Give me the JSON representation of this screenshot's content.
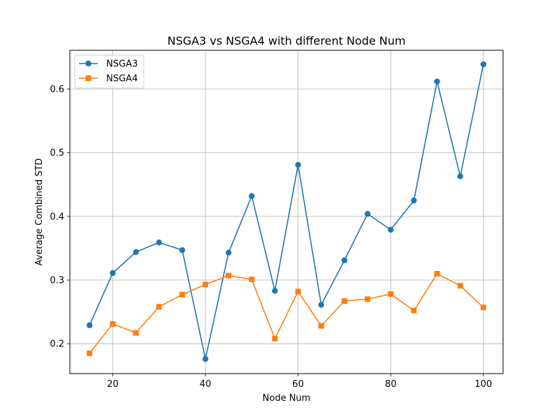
{
  "chart_data": {
    "type": "line",
    "title": "NSGA3 vs NSGA4 with different Node Num",
    "xlabel": "Node Num",
    "ylabel": "Average Combined STD",
    "xlim": [
      10.75,
      104.25
    ],
    "ylim": [
      0.153,
      0.661
    ],
    "xticks": [
      20,
      40,
      60,
      80,
      100
    ],
    "yticks": [
      0.2,
      0.3,
      0.4,
      0.5,
      0.6
    ],
    "grid": true,
    "legend_position": "top-left",
    "x": [
      15,
      20,
      25,
      30,
      35,
      40,
      45,
      50,
      55,
      60,
      65,
      70,
      75,
      80,
      85,
      90,
      95,
      100
    ],
    "series": [
      {
        "name": "NSGA3",
        "color": "#1f77b4",
        "marker": "circle",
        "values": [
          0.229,
          0.311,
          0.344,
          0.359,
          0.347,
          0.176,
          0.343,
          0.432,
          0.283,
          0.481,
          0.261,
          0.331,
          0.404,
          0.379,
          0.425,
          0.612,
          0.463,
          0.639
        ]
      },
      {
        "name": "NSGA4",
        "color": "#ff7f0e",
        "marker": "square",
        "values": [
          0.185,
          0.231,
          0.217,
          0.258,
          0.277,
          0.293,
          0.307,
          0.301,
          0.208,
          0.282,
          0.228,
          0.267,
          0.27,
          0.278,
          0.252,
          0.31,
          0.291,
          0.257
        ]
      }
    ]
  }
}
